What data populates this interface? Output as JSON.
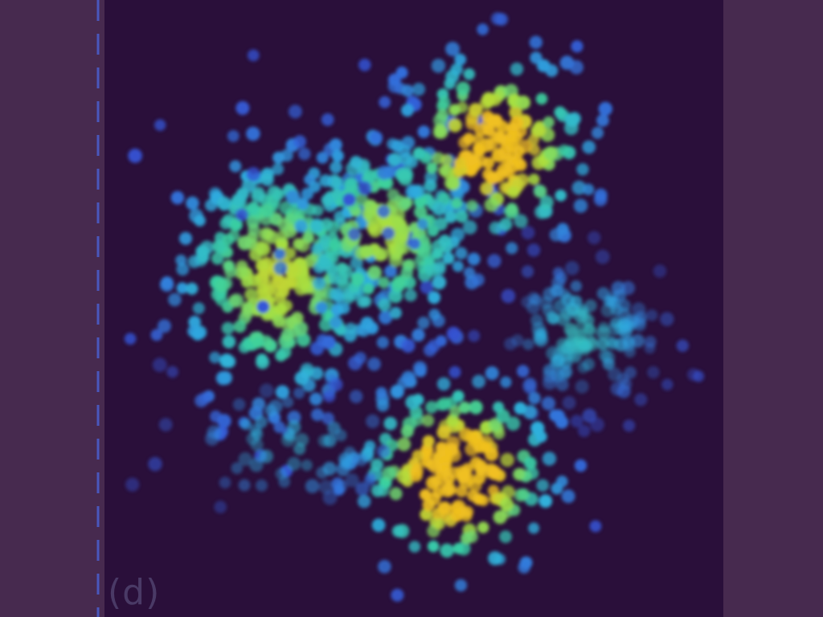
{
  "panel_label": "(d)",
  "colors": {
    "outer_background": "#472a4f",
    "plot_background": "#2a0f3a",
    "axis_dash": "#4a5fd0",
    "colormap": [
      "#3b2a8a",
      "#3556d8",
      "#2fb0e0",
      "#3ad0a0",
      "#a8e040",
      "#f0c020"
    ]
  },
  "chart_data": {
    "type": "heatmap",
    "title": "",
    "xlabel": "",
    "ylabel": "",
    "grid": false,
    "legend": "none",
    "xlim": [
      0,
      1
    ],
    "ylim": [
      0,
      1
    ],
    "clusters": [
      {
        "center": [
          0.28,
          0.55
        ],
        "spread": [
          0.09,
          0.11
        ],
        "count": 320,
        "density": 0.45
      },
      {
        "center": [
          0.45,
          0.62
        ],
        "spread": [
          0.08,
          0.09
        ],
        "count": 240,
        "density": 0.4
      },
      {
        "center": [
          0.63,
          0.76
        ],
        "spread": [
          0.08,
          0.08
        ],
        "count": 200,
        "density": 0.75
      },
      {
        "center": [
          0.77,
          0.46
        ],
        "spread": [
          0.07,
          0.06
        ],
        "count": 150,
        "density": 0.1
      },
      {
        "center": [
          0.57,
          0.23
        ],
        "spread": [
          0.08,
          0.08
        ],
        "count": 220,
        "density": 0.85
      },
      {
        "center": [
          0.3,
          0.28
        ],
        "spread": [
          0.1,
          0.06
        ],
        "count": 60,
        "density": 0.05
      }
    ]
  }
}
